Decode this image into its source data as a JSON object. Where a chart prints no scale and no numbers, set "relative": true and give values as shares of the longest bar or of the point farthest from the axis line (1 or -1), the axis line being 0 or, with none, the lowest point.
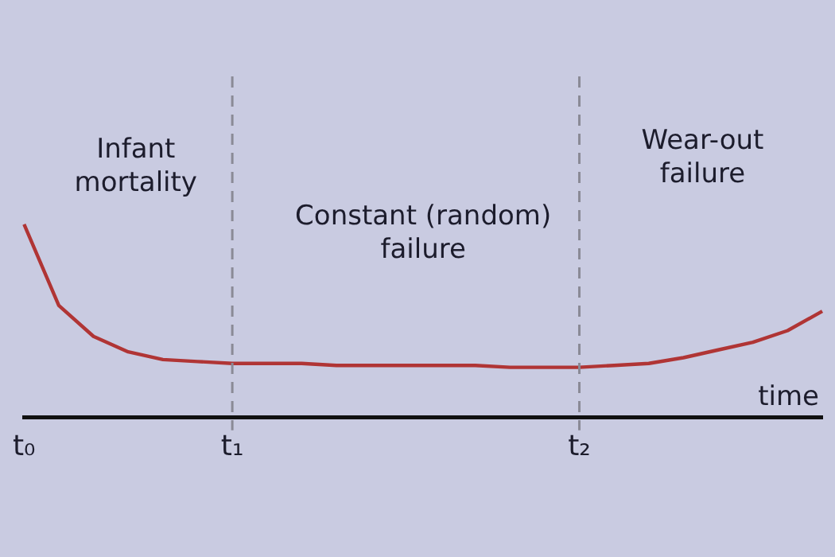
{
  "chart_data": {
    "type": "line",
    "relative": true,
    "xlabel": "time",
    "legend": false,
    "grid": false,
    "marker": "none",
    "line_style": "solid",
    "categories": [
      "t₀",
      null,
      null,
      null,
      null,
      null,
      "t₁",
      null,
      null,
      null,
      null,
      null,
      null,
      null,
      null,
      null,
      "t₂",
      null,
      null,
      null,
      null,
      null,
      null,
      null
    ],
    "series": [
      {
        "color": "#b03535",
        "values": [
          1.0,
          0.58,
          0.42,
          0.34,
          0.3,
          0.29,
          0.28,
          0.28,
          0.28,
          0.27,
          0.27,
          0.27,
          0.27,
          0.27,
          0.26,
          0.26,
          0.26,
          0.27,
          0.28,
          0.31,
          0.35,
          0.39,
          0.45,
          0.55
        ]
      }
    ],
    "ref_lines": [
      {
        "axis": "x",
        "value": "t₁",
        "color": "#8a8a96",
        "line_style": "dashed"
      },
      {
        "axis": "x",
        "value": "t₂",
        "color": "#8a8a96",
        "line_style": "dashed"
      }
    ],
    "annotations": [
      "Infant\nmortality",
      "Constant (random)\nfailure",
      "Wear-out\nfailure"
    ]
  }
}
